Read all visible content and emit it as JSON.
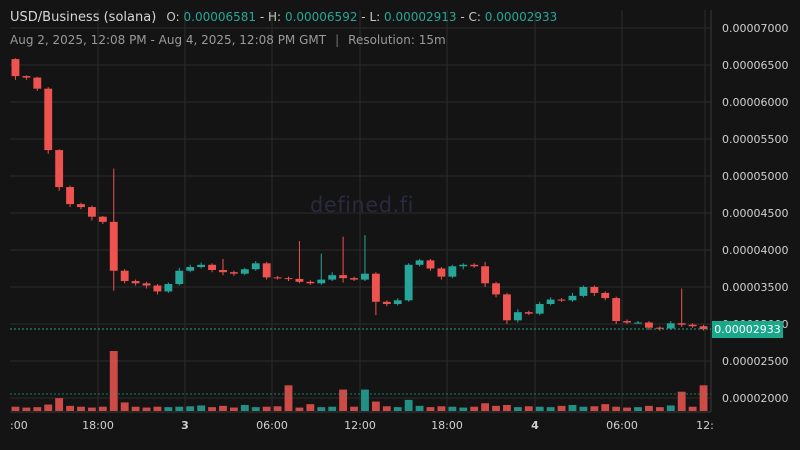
{
  "header": {
    "pair": "USD/Business (solana)",
    "open_label": "O:",
    "open": "0.00006581",
    "high_label": "H:",
    "high": "0.00006592",
    "low_label": "L:",
    "low": "0.00002913",
    "close_label": "C:",
    "close": "0.00002933",
    "range": "Aug 2, 2025, 12:08 PM - Aug 4, 2025, 12:08 PM GMT",
    "resolution": "Resolution: 15m"
  },
  "watermark": "defined.fi",
  "price_badge": "0.00002933",
  "colors": {
    "up": "#26a69a",
    "down": "#ef5350",
    "grid": "#2b2b2b",
    "axis_text": "#d0d0d0",
    "badge": "#1aa88a"
  },
  "chart_data": {
    "type": "candlestick",
    "y_axis": {
      "min": 2e-05,
      "max": 7e-05,
      "ticks": [
        "0.00007000",
        "0.00006500",
        "0.00006000",
        "0.00005500",
        "0.00005000",
        "0.00004500",
        "0.00004000",
        "0.00003500",
        "0.00003000",
        "0.00002500",
        "0.00002000"
      ],
      "position": "right"
    },
    "x_axis": {
      "ticks": [
        ":00",
        "18:00",
        "3",
        "06:00",
        "12:00",
        "18:00",
        "4",
        "06:00",
        "12:"
      ],
      "bold_ticks": [
        "3",
        "4"
      ]
    },
    "current_price": 2.933e-05,
    "price_line": 2.933e-05,
    "candles": [
      {
        "o": 6.58,
        "h": 6.59,
        "l": 6.3,
        "c": 6.35
      },
      {
        "o": 6.35,
        "h": 6.36,
        "l": 6.3,
        "c": 6.33
      },
      {
        "o": 6.33,
        "h": 6.34,
        "l": 6.15,
        "c": 6.18
      },
      {
        "o": 6.18,
        "h": 6.2,
        "l": 5.3,
        "c": 5.35
      },
      {
        "o": 5.35,
        "h": 5.36,
        "l": 4.8,
        "c": 4.85
      },
      {
        "o": 4.85,
        "h": 4.87,
        "l": 4.58,
        "c": 4.62
      },
      {
        "o": 4.62,
        "h": 4.64,
        "l": 4.55,
        "c": 4.58
      },
      {
        "o": 4.58,
        "h": 4.6,
        "l": 4.4,
        "c": 4.45
      },
      {
        "o": 4.45,
        "h": 4.46,
        "l": 4.35,
        "c": 4.38
      },
      {
        "o": 4.38,
        "h": 5.1,
        "l": 3.45,
        "c": 3.72
      },
      {
        "o": 3.72,
        "h": 3.74,
        "l": 3.55,
        "c": 3.58
      },
      {
        "o": 3.58,
        "h": 3.6,
        "l": 3.52,
        "c": 3.55
      },
      {
        "o": 3.55,
        "h": 3.57,
        "l": 3.48,
        "c": 3.52
      },
      {
        "o": 3.52,
        "h": 3.54,
        "l": 3.4,
        "c": 3.44
      },
      {
        "o": 3.44,
        "h": 3.56,
        "l": 3.42,
        "c": 3.54
      },
      {
        "o": 3.54,
        "h": 3.76,
        "l": 3.52,
        "c": 3.72
      },
      {
        "o": 3.72,
        "h": 3.8,
        "l": 3.7,
        "c": 3.77
      },
      {
        "o": 3.77,
        "h": 3.83,
        "l": 3.75,
        "c": 3.8
      },
      {
        "o": 3.8,
        "h": 3.82,
        "l": 3.7,
        "c": 3.73
      },
      {
        "o": 3.73,
        "h": 3.88,
        "l": 3.66,
        "c": 3.7
      },
      {
        "o": 3.7,
        "h": 3.72,
        "l": 3.65,
        "c": 3.68
      },
      {
        "o": 3.68,
        "h": 3.76,
        "l": 3.66,
        "c": 3.74
      },
      {
        "o": 3.74,
        "h": 3.85,
        "l": 3.72,
        "c": 3.82
      },
      {
        "o": 3.82,
        "h": 3.84,
        "l": 3.6,
        "c": 3.63
      },
      {
        "o": 3.63,
        "h": 3.65,
        "l": 3.6,
        "c": 3.62
      },
      {
        "o": 3.62,
        "h": 3.64,
        "l": 3.58,
        "c": 3.61
      },
      {
        "o": 3.61,
        "h": 4.12,
        "l": 3.55,
        "c": 3.57
      },
      {
        "o": 3.57,
        "h": 3.59,
        "l": 3.53,
        "c": 3.55
      },
      {
        "o": 3.55,
        "h": 3.95,
        "l": 3.53,
        "c": 3.6
      },
      {
        "o": 3.6,
        "h": 3.7,
        "l": 3.58,
        "c": 3.66
      },
      {
        "o": 3.66,
        "h": 4.18,
        "l": 3.56,
        "c": 3.62
      },
      {
        "o": 3.62,
        "h": 3.64,
        "l": 3.58,
        "c": 3.6
      },
      {
        "o": 3.6,
        "h": 4.2,
        "l": 3.58,
        "c": 3.68
      },
      {
        "o": 3.68,
        "h": 3.7,
        "l": 3.12,
        "c": 3.3
      },
      {
        "o": 3.3,
        "h": 3.32,
        "l": 3.24,
        "c": 3.27
      },
      {
        "o": 3.27,
        "h": 3.35,
        "l": 3.25,
        "c": 3.32
      },
      {
        "o": 3.32,
        "h": 3.82,
        "l": 3.3,
        "c": 3.8
      },
      {
        "o": 3.8,
        "h": 3.88,
        "l": 3.78,
        "c": 3.86
      },
      {
        "o": 3.86,
        "h": 3.88,
        "l": 3.72,
        "c": 3.75
      },
      {
        "o": 3.75,
        "h": 3.77,
        "l": 3.6,
        "c": 3.64
      },
      {
        "o": 3.64,
        "h": 3.8,
        "l": 3.62,
        "c": 3.78
      },
      {
        "o": 3.78,
        "h": 3.82,
        "l": 3.74,
        "c": 3.8
      },
      {
        "o": 3.8,
        "h": 3.82,
        "l": 3.76,
        "c": 3.78
      },
      {
        "o": 3.78,
        "h": 3.84,
        "l": 3.5,
        "c": 3.55
      },
      {
        "o": 3.55,
        "h": 3.57,
        "l": 3.36,
        "c": 3.4
      },
      {
        "o": 3.4,
        "h": 3.42,
        "l": 3.0,
        "c": 3.05
      },
      {
        "o": 3.05,
        "h": 3.2,
        "l": 3.02,
        "c": 3.16
      },
      {
        "o": 3.16,
        "h": 3.18,
        "l": 3.12,
        "c": 3.14
      },
      {
        "o": 3.14,
        "h": 3.3,
        "l": 3.12,
        "c": 3.27
      },
      {
        "o": 3.27,
        "h": 3.36,
        "l": 3.25,
        "c": 3.33
      },
      {
        "o": 3.33,
        "h": 3.35,
        "l": 3.3,
        "c": 3.32
      },
      {
        "o": 3.32,
        "h": 3.42,
        "l": 3.3,
        "c": 3.38
      },
      {
        "o": 3.38,
        "h": 3.52,
        "l": 3.36,
        "c": 3.5
      },
      {
        "o": 3.5,
        "h": 3.52,
        "l": 3.38,
        "c": 3.42
      },
      {
        "o": 3.42,
        "h": 3.44,
        "l": 3.32,
        "c": 3.35
      },
      {
        "o": 3.35,
        "h": 3.37,
        "l": 3.0,
        "c": 3.04
      },
      {
        "o": 3.04,
        "h": 3.06,
        "l": 3.0,
        "c": 3.02
      },
      {
        "o": 3.02,
        "h": 3.04,
        "l": 3.0,
        "c": 3.02
      },
      {
        "o": 3.02,
        "h": 3.04,
        "l": 2.92,
        "c": 2.95
      },
      {
        "o": 2.95,
        "h": 2.97,
        "l": 2.91,
        "c": 2.94
      },
      {
        "o": 2.94,
        "h": 3.04,
        "l": 2.92,
        "c": 3.01
      },
      {
        "o": 3.01,
        "h": 3.48,
        "l": 2.96,
        "c": 2.99
      },
      {
        "o": 2.99,
        "h": 3.01,
        "l": 2.95,
        "c": 2.97
      },
      {
        "o": 2.97,
        "h": 2.99,
        "l": 2.91,
        "c": 2.93
      }
    ],
    "volume": [
      1,
      0.8,
      0.9,
      1.5,
      3,
      1.2,
      1,
      0.8,
      1,
      14,
      2,
      1,
      0.8,
      1,
      0.9,
      1,
      1.1,
      1.3,
      0.9,
      1.2,
      0.8,
      1.4,
      0.9,
      1,
      1.1,
      6,
      0.8,
      1.6,
      0.9,
      1,
      5,
      1,
      5,
      2.2,
      1.1,
      0.9,
      2.6,
      1.2,
      0.9,
      1.1,
      1,
      0.8,
      1,
      1.8,
      1.2,
      1.4,
      0.9,
      1.1,
      1,
      0.9,
      1.2,
      1.4,
      1,
      1.1,
      1.6,
      1,
      0.8,
      0.9,
      1.2,
      0.9,
      1.3,
      4.5,
      1,
      6
    ]
  }
}
